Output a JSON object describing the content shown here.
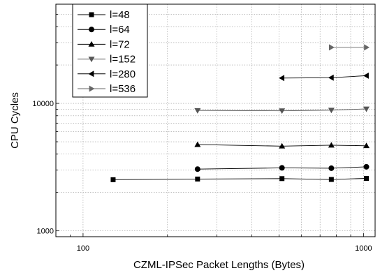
{
  "chart_data": {
    "type": "line",
    "xlabel": "CZML-IPSec Packet Lengths (Bytes)",
    "ylabel": "CPU Cycles",
    "x_scale": "log",
    "y_scale": "log",
    "xlim": [
      80,
      1100
    ],
    "ylim": [
      900,
      60000
    ],
    "x_ticks": [
      100,
      1000
    ],
    "x_tick_labels": [
      "100",
      "1000"
    ],
    "y_ticks": [
      1000,
      10000
    ],
    "y_tick_labels": [
      "1000",
      "10000"
    ],
    "grid": true,
    "legend_position": "top-left",
    "series": [
      {
        "name": "l=48",
        "marker": "square",
        "color": "#000000",
        "x": [
          128,
          256,
          512,
          768,
          1024
        ],
        "y": [
          2520,
          2550,
          2570,
          2530,
          2580
        ]
      },
      {
        "name": "l=64",
        "marker": "circle",
        "color": "#000000",
        "x": [
          256,
          512,
          768,
          1024
        ],
        "y": [
          3050,
          3120,
          3100,
          3180
        ]
      },
      {
        "name": "l=72",
        "marker": "triangle-up",
        "color": "#000000",
        "x": [
          256,
          512,
          768,
          1024
        ],
        "y": [
          4750,
          4620,
          4700,
          4650
        ]
      },
      {
        "name": "l=152",
        "marker": "triangle-down",
        "color": "#555555",
        "x": [
          256,
          512,
          768,
          1024
        ],
        "y": [
          8800,
          8750,
          8850,
          9050
        ]
      },
      {
        "name": "l=280",
        "marker": "triangle-left",
        "color": "#000000",
        "x": [
          512,
          768,
          1024
        ],
        "y": [
          15800,
          15900,
          16500
        ]
      },
      {
        "name": "l=536",
        "marker": "triangle-right",
        "color": "#666666",
        "x": [
          768,
          1024
        ],
        "y": [
          27500,
          27500
        ]
      }
    ]
  }
}
